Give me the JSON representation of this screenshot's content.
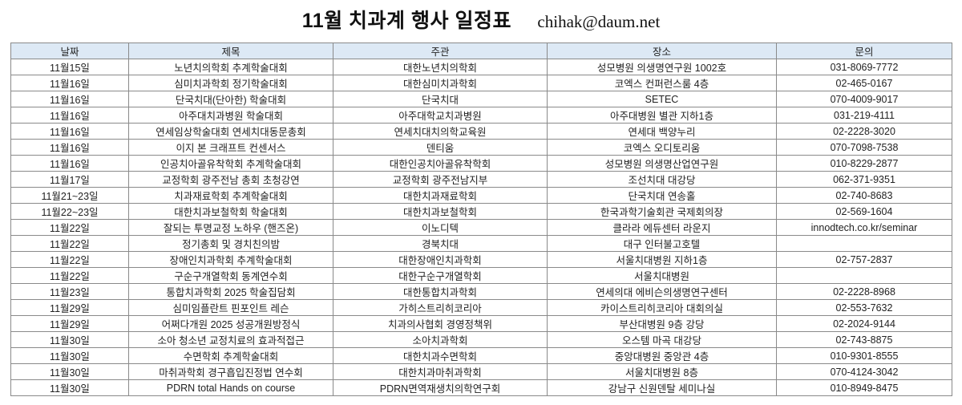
{
  "header": {
    "title": "11월 치과계 행사 일정표",
    "email": "chihak@daum.net"
  },
  "colors": {
    "header_bg": "#dde9f5",
    "border": "#8a8a8a"
  },
  "table": {
    "columns": [
      "날짜",
      "제목",
      "주관",
      "장소",
      "문의"
    ],
    "rows": [
      [
        "11월15일",
        "노년치의학회 추계학술대회",
        "대한노년치의학회",
        "성모병원 의생명연구원 1002호",
        "031-8069-7772"
      ],
      [
        "11월16일",
        "심미치과학회 정기학술대회",
        "대한심미치과학회",
        "코엑스 컨퍼런스룸 4층",
        "02-465-0167"
      ],
      [
        "11월16일",
        "단국치대(단아한) 학술대회",
        "단국치대",
        "SETEC",
        "070-4009-9017"
      ],
      [
        "11월16일",
        "아주대치과병원 학술대회",
        "아주대학교치과병원",
        "아주대병원 별관 지하1층",
        "031-219-4111"
      ],
      [
        "11월16일",
        "연세임상학술대회 연세치대동문총회",
        "연세치대치의학교육원",
        "연세대 백양누리",
        "02-2228-3020"
      ],
      [
        "11월16일",
        "이지 본 크래프트 컨센서스",
        "덴티움",
        "코엑스 오디토리움",
        "070-7098-7538"
      ],
      [
        "11월16일",
        "인공치아골유착학회 추계학술대회",
        "대한인공치아골유착학회",
        "성모병원 의생명산업연구원",
        "010-8229-2877"
      ],
      [
        "11월17일",
        "교정학회 광주전남 총회 초청강연",
        "교정학회 광주전남지부",
        "조선치대 대강당",
        "062-371-9351"
      ],
      [
        "11월21~23일",
        "치과재료학회 추계학술대회",
        "대한치과재료학회",
        "단국치대 연송홀",
        "02-740-8683"
      ],
      [
        "11월22~23일",
        "대한치과보철학회 학술대회",
        "대한치과보철학회",
        "한국과학기술회관 국제회의장",
        "02-569-1604"
      ],
      [
        "11월22일",
        "잘되는 투명교정 노하우 (핸즈온)",
        "이노디텍",
        "클라라 에듀센터 라운지",
        "innodtech.co.kr/seminar"
      ],
      [
        "11월22일",
        "정기총회 및 경치친의밤",
        "경북치대",
        "대구 인터불고호텔",
        ""
      ],
      [
        "11월22일",
        "장애인치과학회 추계학술대회",
        "대한장애인치과학회",
        "서울치대병원 지하1층",
        "02-757-2837"
      ],
      [
        "11월22일",
        "구순구개열학회 동계연수회",
        "대한구순구개열학회",
        "서울치대병원",
        ""
      ],
      [
        "11월23일",
        "통합치과학회 2025 학술집담회",
        "대한통합치과학회",
        "연세의대 에비슨의생명연구센터",
        "02-2228-8968"
      ],
      [
        "11월29일",
        "심미임플란트 핀포인트 레슨",
        "가히스트리히코리아",
        "카이스트리히코리아 대회의실",
        "02-553-7632"
      ],
      [
        "11월29일",
        "어쩌다개원 2025 성공개원방정식",
        "치과의사협회 경영정책위",
        "부산대병원 9층 강당",
        "02-2024-9144"
      ],
      [
        "11월30일",
        "소아 청소년 교정치료의 효과적접근",
        "소아치과학회",
        "오스템 마곡 대강당",
        "02-743-8875"
      ],
      [
        "11월30일",
        "수면학회 추계학술대회",
        "대한치과수면학회",
        "중앙대병원 중앙관 4층",
        "010-9301-8555"
      ],
      [
        "11월30일",
        "마취과학회 경구흡입진정법 연수회",
        "대한치과마취과학회",
        "서울치대병원 8층",
        "070-4124-3042"
      ],
      [
        "11월30일",
        "PDRN total Hands on course",
        "PDRN면역재생치의학연구회",
        "강남구 신원덴탈 세미나실",
        "010-8949-8475"
      ]
    ]
  }
}
